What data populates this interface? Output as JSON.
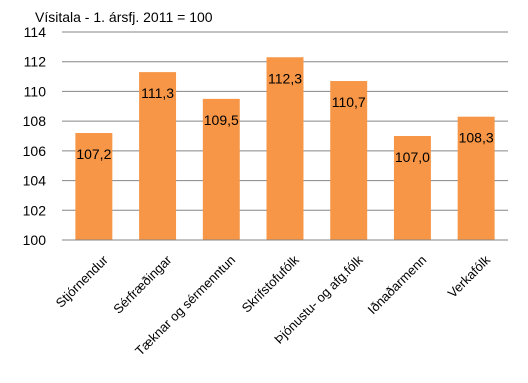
{
  "chart_data": {
    "type": "bar",
    "title": "",
    "subtitle": "Vísitala - 1. ársfj. 2011 = 100",
    "xlabel": "",
    "ylabel": "",
    "ylim": [
      100,
      114
    ],
    "ytick_step": 2,
    "yticks": [
      "100",
      "102",
      "104",
      "106",
      "108",
      "110",
      "112",
      "114"
    ],
    "grid": true,
    "legend": "none",
    "bar_color": "#F79646",
    "categories": [
      "Stjórnendur",
      "Sérfræðingar",
      "Tæknar og sérmenntun",
      "Skrifstofufólk",
      "Þjónustu- og afg.fólk",
      "Iðnaðarmenn",
      "Verkafólk"
    ],
    "values": [
      107.2,
      111.3,
      109.5,
      112.3,
      110.7,
      107.0,
      108.3
    ],
    "data_labels": [
      "107,2",
      "111,3",
      "109,5",
      "112,3",
      "110,7",
      "107,0",
      "108,3"
    ]
  }
}
